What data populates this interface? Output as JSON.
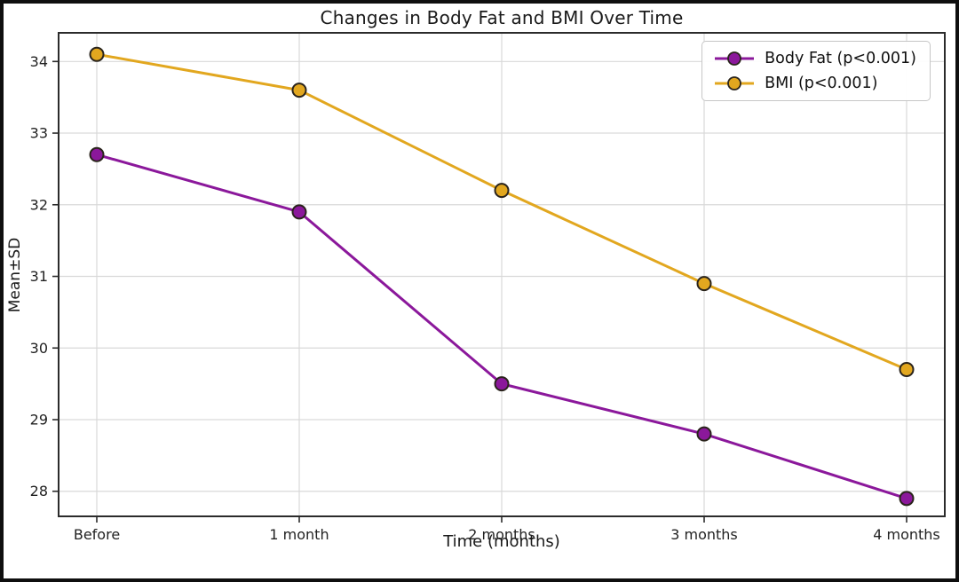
{
  "chart_data": {
    "type": "line",
    "title": "Changes in Body Fat and BMI Over Time",
    "xlabel": "Time (months)",
    "ylabel": "Mean±SD",
    "categories": [
      "Before",
      "1 month",
      "2 months",
      "3 months",
      "4 months"
    ],
    "series": [
      {
        "name": "Body Fat (p<0.001)",
        "color": "#8b189b",
        "values": [
          32.7,
          31.9,
          29.5,
          28.8,
          27.9
        ]
      },
      {
        "name": "BMI (p<0.001)",
        "color": "#e2a71f",
        "values": [
          34.1,
          33.6,
          32.2,
          30.9,
          29.7
        ]
      }
    ],
    "yticks": [
      28,
      29,
      30,
      31,
      32,
      33,
      34
    ],
    "ylim": [
      27.65,
      34.4
    ],
    "grid": true,
    "legend_position": "top-right",
    "marker": "circle",
    "marker_edge_color": "#2a241c",
    "grid_color": "#d9d9d9",
    "axis_color": "#2b2b2b",
    "text_color": "#222222"
  }
}
